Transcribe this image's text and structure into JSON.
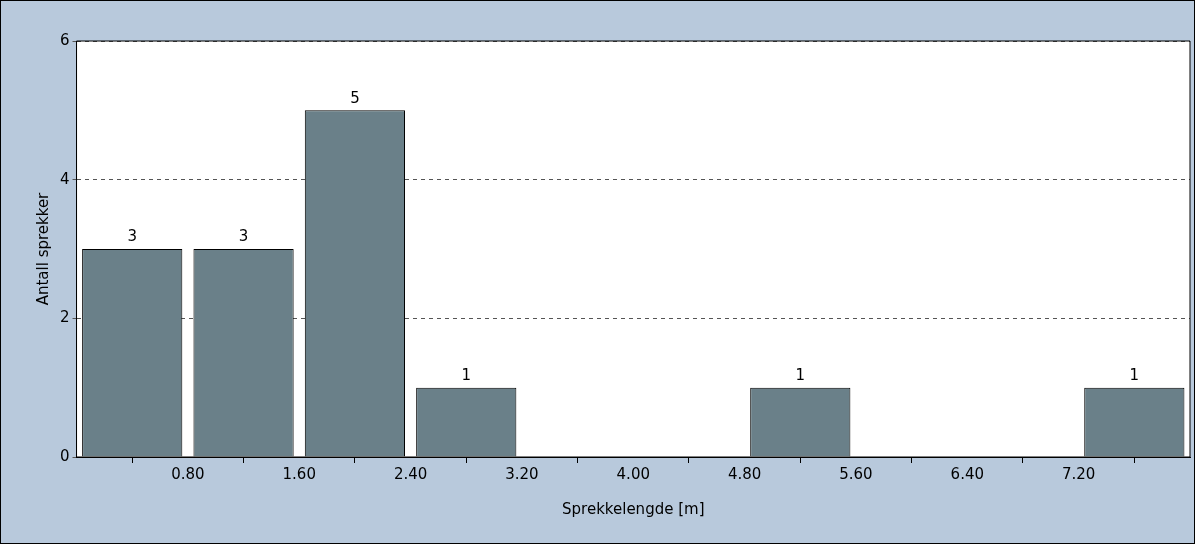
{
  "chart_data": {
    "type": "histogram",
    "xlabel": "Sprekkelengde [m]",
    "ylabel": "Antall sprekker",
    "bins": [
      0,
      0.8,
      1.6,
      2.4,
      3.2,
      4.0,
      4.8,
      5.6,
      6.4,
      7.2,
      8.0
    ],
    "values": [
      3,
      3,
      5,
      1,
      0,
      0,
      1,
      0,
      0,
      1
    ],
    "value_labels": [
      "3",
      "3",
      "5",
      "1",
      null,
      null,
      "1",
      null,
      null,
      "1"
    ],
    "color": "#6a8089",
    "xlim": [
      0,
      8.0
    ],
    "xticks": [
      {
        "value": 0.8,
        "label": "0.80"
      },
      {
        "value": 1.6,
        "label": "1.60"
      },
      {
        "value": 2.4,
        "label": "2.40"
      },
      {
        "value": 3.2,
        "label": "3.20"
      },
      {
        "value": 4.0,
        "label": "4.00"
      },
      {
        "value": 4.8,
        "label": "4.80"
      },
      {
        "value": 5.6,
        "label": "5.60"
      },
      {
        "value": 6.4,
        "label": "6.40"
      },
      {
        "value": 7.2,
        "label": "7.20"
      }
    ],
    "ylim": [
      0,
      6
    ],
    "yticks": [
      0,
      2,
      4,
      6
    ],
    "grid": "y",
    "line_style": "dashed",
    "legend": false
  }
}
